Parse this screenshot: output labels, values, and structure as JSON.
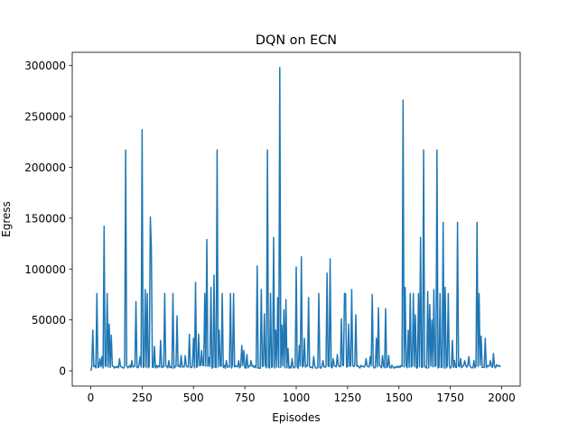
{
  "chart_data": {
    "type": "line",
    "title": "DQN on ECN",
    "xlabel": "Episodes",
    "ylabel": "Egress",
    "xlim": [
      -90,
      2090
    ],
    "ylim": [
      -15000,
      313000
    ],
    "grid": false,
    "xticks": [
      0,
      250,
      500,
      750,
      1000,
      1250,
      1500,
      1750,
      2000
    ],
    "yticks": [
      0,
      50000,
      100000,
      150000,
      200000,
      250000,
      300000
    ],
    "xtick_labels": [
      "0",
      "250",
      "500",
      "750",
      "1000",
      "1250",
      "1500",
      "1750",
      "2000"
    ],
    "ytick_labels": [
      "0",
      "50000",
      "100000",
      "150000",
      "200000",
      "250000",
      "300000"
    ],
    "baseline": 4000,
    "series": [
      {
        "color": "#1f77b4",
        "spikes": [
          [
            0,
            0
          ],
          [
            10,
            40000
          ],
          [
            20,
            5000
          ],
          [
            30,
            76000
          ],
          [
            45,
            12000
          ],
          [
            55,
            14000
          ],
          [
            65,
            142000
          ],
          [
            80,
            76000
          ],
          [
            90,
            46000
          ],
          [
            100,
            35000
          ],
          [
            112,
            76000
          ],
          [
            140,
            12000
          ],
          [
            170,
            217000
          ],
          [
            200,
            10000
          ],
          [
            220,
            68000
          ],
          [
            240,
            14000
          ],
          [
            250,
            237000
          ],
          [
            265,
            80000
          ],
          [
            275,
            76000
          ],
          [
            290,
            151000
          ],
          [
            295,
            120000
          ],
          [
            310,
            24000
          ],
          [
            340,
            30000
          ],
          [
            360,
            76000
          ],
          [
            380,
            10000
          ],
          [
            400,
            76000
          ],
          [
            420,
            54000
          ],
          [
            440,
            15000
          ],
          [
            460,
            15000
          ],
          [
            480,
            36000
          ],
          [
            500,
            32000
          ],
          [
            510,
            87000
          ],
          [
            525,
            36000
          ],
          [
            540,
            20000
          ],
          [
            555,
            76000
          ],
          [
            565,
            129000
          ],
          [
            575,
            13000
          ],
          [
            585,
            82000
          ],
          [
            600,
            94000
          ],
          [
            615,
            217000
          ],
          [
            625,
            40000
          ],
          [
            640,
            76000
          ],
          [
            660,
            10000
          ],
          [
            680,
            76000
          ],
          [
            695,
            76000
          ],
          [
            720,
            10000
          ],
          [
            735,
            25000
          ],
          [
            745,
            20000
          ],
          [
            760,
            16000
          ],
          [
            780,
            10000
          ],
          [
            810,
            103000
          ],
          [
            830,
            80000
          ],
          [
            845,
            56000
          ],
          [
            860,
            217000
          ],
          [
            875,
            76000
          ],
          [
            890,
            131000
          ],
          [
            900,
            40000
          ],
          [
            910,
            72000
          ],
          [
            920,
            298000
          ],
          [
            930,
            45000
          ],
          [
            940,
            60000
          ],
          [
            950,
            70000
          ],
          [
            960,
            22000
          ],
          [
            980,
            12000
          ],
          [
            1000,
            102000
          ],
          [
            1015,
            25000
          ],
          [
            1025,
            112000
          ],
          [
            1040,
            32000
          ],
          [
            1060,
            72000
          ],
          [
            1085,
            14000
          ],
          [
            1110,
            76000
          ],
          [
            1130,
            10000
          ],
          [
            1150,
            96000
          ],
          [
            1165,
            110000
          ],
          [
            1180,
            12000
          ],
          [
            1200,
            16000
          ],
          [
            1220,
            51000
          ],
          [
            1235,
            76000
          ],
          [
            1240,
            76000
          ],
          [
            1255,
            46000
          ],
          [
            1270,
            80000
          ],
          [
            1290,
            55000
          ],
          [
            1340,
            12000
          ],
          [
            1360,
            14000
          ],
          [
            1370,
            75000
          ],
          [
            1390,
            32000
          ],
          [
            1400,
            62000
          ],
          [
            1420,
            15000
          ],
          [
            1435,
            61000
          ],
          [
            1450,
            15000
          ],
          [
            1520,
            266000
          ],
          [
            1530,
            82000
          ],
          [
            1545,
            40000
          ],
          [
            1555,
            76000
          ],
          [
            1570,
            76000
          ],
          [
            1580,
            55000
          ],
          [
            1595,
            76000
          ],
          [
            1605,
            131000
          ],
          [
            1620,
            217000
          ],
          [
            1640,
            78000
          ],
          [
            1650,
            65000
          ],
          [
            1660,
            50000
          ],
          [
            1670,
            80000
          ],
          [
            1685,
            217000
          ],
          [
            1700,
            76000
          ],
          [
            1715,
            146000
          ],
          [
            1725,
            82000
          ],
          [
            1740,
            76000
          ],
          [
            1760,
            30000
          ],
          [
            1770,
            10000
          ],
          [
            1785,
            146000
          ],
          [
            1800,
            12000
          ],
          [
            1820,
            10000
          ],
          [
            1840,
            14000
          ],
          [
            1865,
            10000
          ],
          [
            1880,
            146000
          ],
          [
            1890,
            76000
          ],
          [
            1900,
            34000
          ],
          [
            1920,
            32000
          ],
          [
            1945,
            10000
          ],
          [
            1960,
            17000
          ],
          [
            1975,
            6000
          ],
          [
            1995,
            5000
          ]
        ]
      }
    ]
  }
}
